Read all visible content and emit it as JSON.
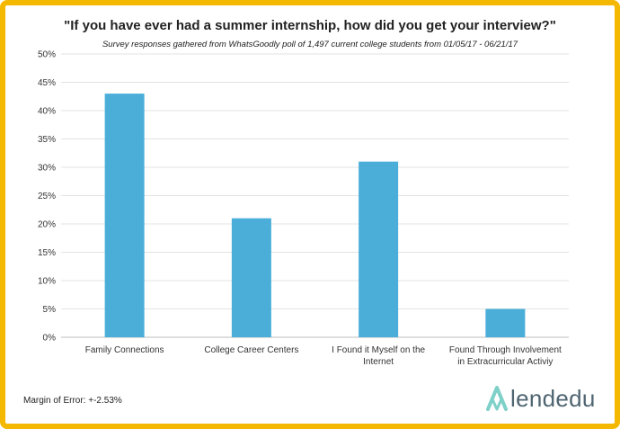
{
  "chart_data": {
    "type": "bar",
    "title": "\"If you have ever had a summer internship, how did you get your interview?\"",
    "subtitle": "Survey responses gathered from WhatsGoodly poll of 1,497 current college students from 01/05/17 - 06/21/17",
    "categories": [
      [
        "Family Connections"
      ],
      [
        "College Career Centers"
      ],
      [
        "I Found it Myself on the",
        "Internet"
      ],
      [
        "Found Through Involvement",
        "in Extracurricular Activiy"
      ]
    ],
    "values": [
      43,
      21,
      31,
      5
    ],
    "y_ticks": [
      "0%",
      "5%",
      "10%",
      "15%",
      "20%",
      "25%",
      "30%",
      "35%",
      "40%",
      "45%",
      "50%"
    ],
    "ylim": [
      0,
      50
    ],
    "grid": true,
    "bar_color": "#4aaed9"
  },
  "footer": {
    "margin_of_error": "Margin of Error: +-2.53%"
  },
  "logo": {
    "text": "lendedu",
    "color": "#4f6571",
    "icon_color": "#7fd0c8"
  }
}
